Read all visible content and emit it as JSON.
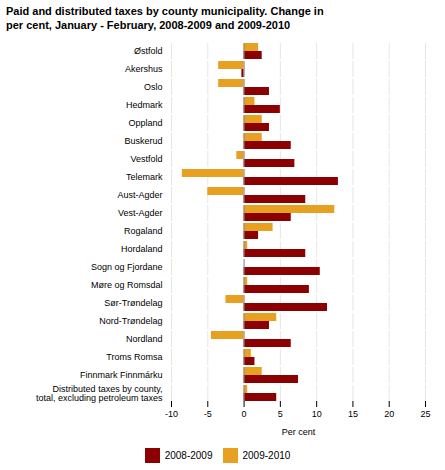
{
  "chart_data": {
    "type": "bar",
    "orientation": "horizontal",
    "title": "Paid and distributed taxes by county municipality. Change in\nper cent, January - February, 2008-2009 and 2009-2010",
    "categories": [
      "Østfold",
      "Akershus",
      "Oslo",
      "Hedmark",
      "Oppland",
      "Buskerud",
      "Vestfold",
      "Telemark",
      "Aust-Agder",
      "Vest-Agder",
      "Rogaland",
      "Hordaland",
      "Sogn og Fjordane",
      "Møre og Romsdal",
      "Sør-Trøndelag",
      "Nord-Trøndelag",
      "Nordland",
      "Troms Romsa",
      "Finnmark Finnmárku",
      "Distributed taxes by county,\ntotal, excluding petroleum taxes"
    ],
    "series": [
      {
        "name": "2008-2009",
        "color": "#8B0000",
        "values": [
          2.5,
          -0.3,
          3.5,
          5.0,
          3.5,
          6.5,
          7.0,
          13.0,
          8.5,
          6.5,
          2.0,
          8.5,
          10.5,
          9.0,
          11.5,
          3.5,
          6.5,
          1.5,
          7.5,
          4.5
        ]
      },
      {
        "name": "2009-2010",
        "color": "#E8A020",
        "values": [
          2.0,
          -3.5,
          -3.5,
          1.5,
          2.5,
          2.5,
          -1.0,
          -8.5,
          -5.0,
          12.5,
          4.0,
          0.5,
          0.0,
          0.5,
          -2.5,
          4.5,
          -4.5,
          1.0,
          2.5,
          0.5
        ]
      }
    ],
    "xlabel": "Per cent",
    "xlim": [
      -10,
      25
    ],
    "xticks": [
      -10,
      -5,
      0,
      5,
      10,
      15,
      20,
      25
    ],
    "grid": true,
    "legend": "bottom"
  }
}
